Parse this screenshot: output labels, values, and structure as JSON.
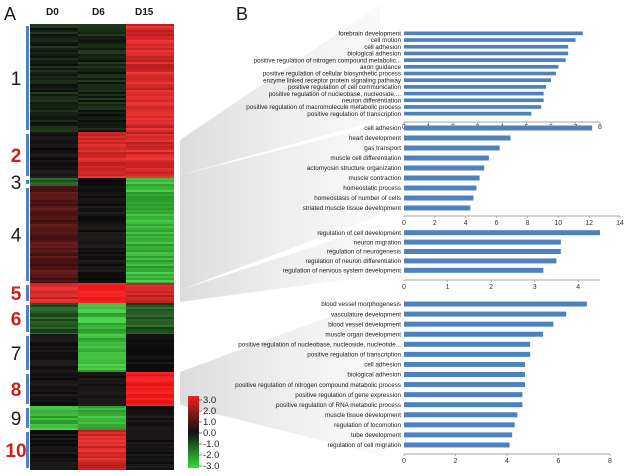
{
  "panel_a": {
    "label": "A",
    "columns": [
      "D0",
      "D6",
      "D15"
    ],
    "clusters": [
      {
        "id": "1",
        "color": "#1a1a1a",
        "pattern": [
          "zero-green",
          "zero-green",
          "red"
        ]
      },
      {
        "id": "2",
        "color": "#cc1f1f",
        "pattern": [
          "zero",
          "red",
          "red"
        ]
      },
      {
        "id": "3",
        "color": "#1a1a1a",
        "pattern": [
          "green-dim",
          "zero",
          "green"
        ]
      },
      {
        "id": "4",
        "color": "#1a1a1a",
        "pattern": [
          "red-dim",
          "zero",
          "green"
        ]
      },
      {
        "id": "5",
        "color": "#cc1f1f",
        "pattern": [
          "red",
          "red-bright",
          "red"
        ]
      },
      {
        "id": "6",
        "color": "#cc1f1f",
        "pattern": [
          "green-dim",
          "green",
          "green-dim"
        ]
      },
      {
        "id": "7",
        "color": "#1a1a1a",
        "pattern": [
          "zero",
          "green",
          "zero"
        ]
      },
      {
        "id": "8",
        "color": "#cc1f1f",
        "pattern": [
          "zero",
          "zero",
          "red-bright"
        ]
      },
      {
        "id": "9",
        "color": "#1a1a1a",
        "pattern": [
          "green",
          "green",
          "zero"
        ]
      },
      {
        "id": "10",
        "color": "#cc1f1f",
        "pattern": [
          "zero",
          "red",
          "zero"
        ]
      }
    ],
    "colorbar": {
      "ticks": [
        "3.0",
        "2.0",
        "1.0",
        "0.0",
        "-1.0",
        "-2.0",
        "-3.0"
      ],
      "min": -3,
      "max": 3
    }
  },
  "panel_b": {
    "label": "B"
  },
  "chart_data": [
    {
      "type": "bar",
      "orientation": "horizontal",
      "categories": [
        "forebrain development",
        "cell motion",
        "cell adhesion",
        "biological adhesion",
        "positive regulation of nitrogen compound metabolic...",
        "axon guidance",
        "positive regulation of cellular biosynthetic process",
        "enzyme linked receptor protein signaling pathway",
        "positive regulation of cell communication",
        "positive regulation of nucleobase, nucleoside,...",
        "neuron differentiation",
        "positive regulation of macromolecule metabolic process",
        "positive regulation of transcription"
      ],
      "values": [
        7.3,
        7.0,
        6.7,
        6.7,
        6.6,
        6.3,
        6.2,
        6.0,
        5.8,
        5.7,
        5.7,
        5.6,
        5.2
      ],
      "xlim": [
        0,
        8
      ],
      "ticks": [
        "0",
        "1",
        "2",
        "3",
        "4",
        "5",
        "6",
        "7",
        "8"
      ]
    },
    {
      "type": "bar",
      "orientation": "horizontal",
      "categories": [
        "cell adhesion",
        "heart development",
        "gas transport",
        "muscle cell differentiation",
        "actomyosin structure organization",
        "muscle contraction",
        "homeostatic process",
        "homeostasis of number of cells",
        "striated muscle tissue development"
      ],
      "values": [
        12.2,
        6.9,
        6.2,
        5.5,
        5.2,
        4.9,
        4.7,
        4.5,
        4.3
      ],
      "xlim": [
        0,
        14
      ],
      "ticks": [
        "0",
        "2",
        "4",
        "6",
        "8",
        "10",
        "12",
        "14"
      ]
    },
    {
      "type": "bar",
      "orientation": "horizontal",
      "categories": [
        "regulation of cell development",
        "neuron migration",
        "regulation of neurogenesis",
        "regulation of neuron differentiation",
        "regulation of nervous system development"
      ],
      "values": [
        4.5,
        3.6,
        3.6,
        3.5,
        3.2
      ],
      "xlim": [
        0,
        4.5
      ],
      "ticks": [
        "0",
        "1",
        "2",
        "3",
        "4"
      ]
    },
    {
      "type": "bar",
      "orientation": "horizontal",
      "categories": [
        "blood vessel morphogenesis",
        "vasculature development",
        "blood vessel development",
        "muscle organ development",
        "positive regulation of nucleobase, nucleoside, nucleotide...",
        "positive regulation of transcription",
        "cell adhesion",
        "biological adhesion",
        "positive regulation of nitrogen compound metabolic process",
        "positive regulation of gene expression",
        "positive regulation of RNA metabolic process",
        "muscle tissue development",
        "regulation of locomotion",
        "tube development",
        "regulation of cell migration"
      ],
      "values": [
        7.1,
        6.3,
        5.8,
        5.4,
        4.9,
        4.9,
        4.7,
        4.7,
        4.7,
        4.6,
        4.6,
        4.4,
        4.3,
        4.2,
        4.1
      ],
      "xlim": [
        0,
        8
      ],
      "ticks": [
        "0",
        "2",
        "4",
        "6",
        "8"
      ]
    }
  ]
}
